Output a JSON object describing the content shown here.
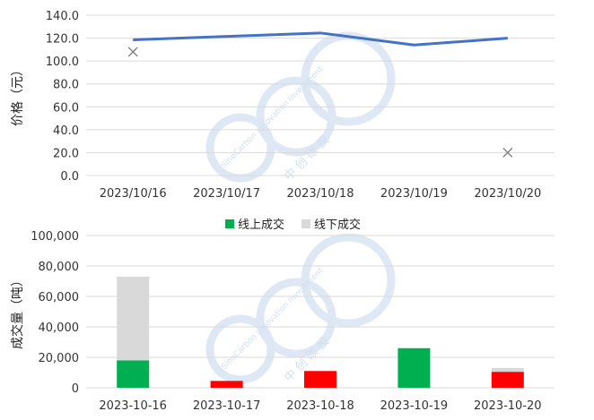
{
  "chart_data": [
    {
      "type": "line",
      "ylabel": "价格（元）",
      "ylim": [
        0,
        140
      ],
      "yticks": [
        "0.0",
        "20.0",
        "40.0",
        "60.0",
        "80.0",
        "100.0",
        "120.0",
        "140.0"
      ],
      "categories": [
        "2023/10/16",
        "2023/10/17",
        "2023/10/18",
        "2023/10/19",
        "2023/10/20"
      ],
      "series": [
        {
          "type": "line",
          "color": "#4472c4",
          "values": [
            118.5,
            121.5,
            124.5,
            114,
            120
          ]
        },
        {
          "type": "marker",
          "marker": "x",
          "color": "#808080",
          "values": [
            108,
            null,
            null,
            null,
            20
          ]
        }
      ],
      "grid": true
    },
    {
      "type": "bar",
      "stacked": true,
      "ylabel": "成交量（吨）",
      "ylim": [
        0,
        100000
      ],
      "yticks": [
        "0",
        "20,000",
        "40,000",
        "60,000",
        "80,000",
        "100,000"
      ],
      "categories": [
        "2023-10-16",
        "2023-10-17",
        "2023-10-18",
        "2023-10-19",
        "2023-10-20"
      ],
      "legend_position": "top",
      "series": [
        {
          "name": "线上成交",
          "color": "#00b050",
          "values": [
            18000,
            4500,
            11000,
            26000,
            10500
          ],
          "point_colors": [
            "#00b050",
            "#ff0000",
            "#ff0000",
            "#00b050",
            "#ff0000"
          ]
        },
        {
          "name": "线下成交",
          "color": "#d9d9d9",
          "values": [
            55000,
            0,
            0,
            0,
            2500
          ]
        }
      ],
      "grid": true
    }
  ],
  "watermark": {
    "line1": "SinoCarbon Innovation Investment",
    "line2": "中 创 碳 投"
  }
}
